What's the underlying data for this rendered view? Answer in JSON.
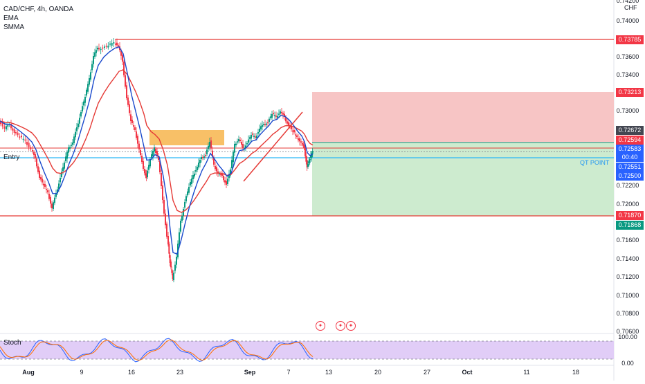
{
  "legend": {
    "symbol": "CAD/CHF, 4h, OANDA",
    "indicator1": "EMA",
    "indicator2": "SMMA"
  },
  "price_axis": {
    "currency": "CHF",
    "ticks": [
      "0.74000",
      "0.73600",
      "0.73400",
      "0.73000",
      "0.72200",
      "0.72000",
      "0.71600",
      "0.71400",
      "0.71200",
      "0.71000",
      "0.70800",
      "0.70600"
    ]
  },
  "price_tags": [
    {
      "label": "0.73785",
      "color": "#f23645"
    },
    {
      "label": "0.73213",
      "color": "#f23645"
    },
    {
      "label": "0.72672",
      "color": "#434651"
    },
    {
      "label": "0.72594",
      "color": "#f23645"
    },
    {
      "label": "0.72583",
      "color": "#2962ff"
    },
    {
      "label": "00:40",
      "color": "#2962ff"
    },
    {
      "label": "0.72551",
      "color": "#2962ff"
    },
    {
      "label": "0.72500",
      "color": "#2962ff"
    },
    {
      "label": "0.71870",
      "color": "#f23645"
    },
    {
      "label": "0.71868",
      "color": "#089981"
    }
  ],
  "top_tick_partial": "0.74200",
  "time_axis": [
    "Aug",
    "9",
    "16",
    "23",
    "Sep",
    "7",
    "13",
    "20",
    "27",
    "Oct",
    "11",
    "18"
  ],
  "annotations": {
    "entry": "Entry",
    "qt_point": "QT POINT"
  },
  "stoch": {
    "label": "Stoch",
    "ticks": [
      "100.00",
      "0.00"
    ]
  },
  "colors": {
    "bull": "#089981",
    "bear": "#f23645",
    "ema": "#1848cc",
    "smma": "#e53935",
    "stop_zone": "#f7c5c5",
    "target_zone": "#cdebcf",
    "supply_zone": "#f7b54c",
    "stoch_bg": "#e1cdf7"
  }
}
